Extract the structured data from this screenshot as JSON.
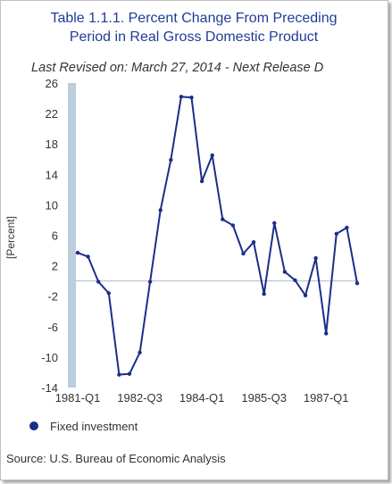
{
  "chart_data": {
    "type": "line",
    "title_line1": "Table 1.1.1. Percent Change From Preceding",
    "title_line2": "Period in Real Gross Domestic Product",
    "subtitle": "Last Revised on: March 27, 2014 - Next Release D",
    "ylabel": "[Percent]",
    "xlabel": "",
    "ylim": [
      -14,
      26
    ],
    "yticks": [
      -14,
      -10,
      -6,
      -2,
      2,
      6,
      10,
      14,
      18,
      22,
      26
    ],
    "x_tick_labels": [
      {
        "label": "1981-Q1",
        "index": 0
      },
      {
        "label": "1982-Q3",
        "index": 6
      },
      {
        "label": "1984-Q1",
        "index": 12
      },
      {
        "label": "1985-Q3",
        "index": 18
      },
      {
        "label": "1987-Q1",
        "index": 24
      }
    ],
    "x": [
      "1981-Q1",
      "1981-Q2",
      "1981-Q3",
      "1981-Q4",
      "1982-Q1",
      "1982-Q2",
      "1982-Q3",
      "1982-Q4",
      "1983-Q1",
      "1983-Q2",
      "1983-Q3",
      "1983-Q4",
      "1984-Q1",
      "1984-Q2",
      "1984-Q3",
      "1984-Q4",
      "1985-Q1",
      "1985-Q2",
      "1985-Q3",
      "1985-Q4",
      "1986-Q1",
      "1986-Q2",
      "1986-Q3",
      "1986-Q4",
      "1987-Q1",
      "1987-Q2",
      "1987-Q3",
      "1987-Q4"
    ],
    "series": [
      {
        "name": "Fixed investment",
        "color": "#1c2d8a",
        "values": [
          3.7,
          3.2,
          -0.1,
          -1.6,
          -12.3,
          -12.2,
          -9.4,
          -0.1,
          9.3,
          15.9,
          24.2,
          24.1,
          13.1,
          16.5,
          8.1,
          7.3,
          3.6,
          5.1,
          -1.7,
          7.6,
          1.2,
          0.1,
          -1.9,
          3.0,
          -6.9,
          6.2,
          7.0,
          -0.3
        ]
      }
    ],
    "legend_position": "bottom-left",
    "grid": false,
    "source": "Source: U.S. Bureau of Economic Analysis",
    "colors": {
      "title": "#1f3d99",
      "series": "#1c2d8a",
      "zero_line": "#a9bccf",
      "axis_band": "#bccddd",
      "text": "#333333"
    }
  }
}
